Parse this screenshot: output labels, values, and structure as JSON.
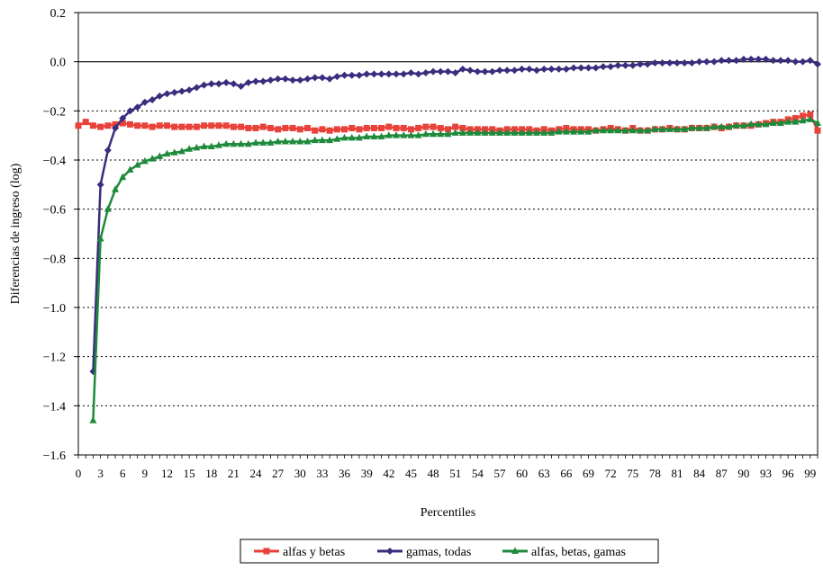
{
  "chart_data": {
    "type": "line",
    "xlabel": "Percentiles",
    "ylabel": "Diferencias de ingreso (log)",
    "ylim": [
      -1.6,
      0.2
    ],
    "xlim": [
      0,
      100
    ],
    "y_ticks": [
      "0.2",
      "0.0",
      "-0.2",
      "-0.4",
      "-0.6",
      "-0.8",
      "-1.0",
      "-1.2",
      "-1.4",
      "-1.6"
    ],
    "x_ticks": [
      "0",
      "3",
      "6",
      "9",
      "12",
      "15",
      "18",
      "21",
      "24",
      "27",
      "30",
      "33",
      "36",
      "39",
      "42",
      "45",
      "48",
      "51",
      "54",
      "57",
      "60",
      "63",
      "66",
      "69",
      "72",
      "75",
      "78",
      "81",
      "84",
      "87",
      "90",
      "93",
      "96",
      "99"
    ],
    "grid": "horizontal dotted",
    "zero_line": true,
    "legend_position": "bottom",
    "series": [
      {
        "name": "alfas y betas",
        "color": "#e8423a",
        "marker": "square",
        "x": [
          0,
          1,
          2,
          3,
          4,
          5,
          6,
          7,
          8,
          9,
          10,
          11,
          12,
          13,
          14,
          15,
          16,
          17,
          18,
          19,
          20,
          21,
          22,
          23,
          24,
          25,
          26,
          27,
          28,
          29,
          30,
          31,
          32,
          33,
          34,
          35,
          36,
          37,
          38,
          39,
          40,
          41,
          42,
          43,
          44,
          45,
          46,
          47,
          48,
          49,
          50,
          51,
          52,
          53,
          54,
          55,
          56,
          57,
          58,
          59,
          60,
          61,
          62,
          63,
          64,
          65,
          66,
          67,
          68,
          69,
          70,
          71,
          72,
          73,
          74,
          75,
          76,
          77,
          78,
          79,
          80,
          81,
          82,
          83,
          84,
          85,
          86,
          87,
          88,
          89,
          90,
          91,
          92,
          93,
          94,
          95,
          96,
          97,
          98,
          99,
          100
        ],
        "y": [
          -0.26,
          -0.245,
          -0.26,
          -0.265,
          -0.26,
          -0.255,
          -0.25,
          -0.255,
          -0.26,
          -0.26,
          -0.265,
          -0.26,
          -0.26,
          -0.265,
          -0.265,
          -0.265,
          -0.265,
          -0.26,
          -0.26,
          -0.26,
          -0.26,
          -0.265,
          -0.265,
          -0.27,
          -0.27,
          -0.265,
          -0.27,
          -0.275,
          -0.27,
          -0.27,
          -0.275,
          -0.27,
          -0.28,
          -0.275,
          -0.28,
          -0.275,
          -0.275,
          -0.27,
          -0.275,
          -0.27,
          -0.27,
          -0.27,
          -0.265,
          -0.27,
          -0.27,
          -0.275,
          -0.27,
          -0.265,
          -0.265,
          -0.27,
          -0.275,
          -0.265,
          -0.27,
          -0.275,
          -0.275,
          -0.275,
          -0.275,
          -0.28,
          -0.275,
          -0.275,
          -0.275,
          -0.275,
          -0.28,
          -0.275,
          -0.28,
          -0.275,
          -0.27,
          -0.275,
          -0.275,
          -0.275,
          -0.28,
          -0.275,
          -0.27,
          -0.275,
          -0.28,
          -0.27,
          -0.28,
          -0.28,
          -0.275,
          -0.275,
          -0.27,
          -0.275,
          -0.275,
          -0.27,
          -0.27,
          -0.27,
          -0.265,
          -0.27,
          -0.265,
          -0.26,
          -0.26,
          -0.26,
          -0.255,
          -0.25,
          -0.245,
          -0.245,
          -0.235,
          -0.23,
          -0.22,
          -0.215,
          -0.28
        ]
      },
      {
        "name": "gamas, todas",
        "color": "#3b2d7e",
        "marker": "diamond",
        "x": [
          2,
          3,
          4,
          5,
          6,
          7,
          8,
          9,
          10,
          11,
          12,
          13,
          14,
          15,
          16,
          17,
          18,
          19,
          20,
          21,
          22,
          23,
          24,
          25,
          26,
          27,
          28,
          29,
          30,
          31,
          32,
          33,
          34,
          35,
          36,
          37,
          38,
          39,
          40,
          41,
          42,
          43,
          44,
          45,
          46,
          47,
          48,
          49,
          50,
          51,
          52,
          53,
          54,
          55,
          56,
          57,
          58,
          59,
          60,
          61,
          62,
          63,
          64,
          65,
          66,
          67,
          68,
          69,
          70,
          71,
          72,
          73,
          74,
          75,
          76,
          77,
          78,
          79,
          80,
          81,
          82,
          83,
          84,
          85,
          86,
          87,
          88,
          89,
          90,
          91,
          92,
          93,
          94,
          95,
          96,
          97,
          98,
          99,
          100
        ],
        "y": [
          -1.26,
          -0.5,
          -0.36,
          -0.27,
          -0.23,
          -0.2,
          -0.185,
          -0.165,
          -0.155,
          -0.14,
          -0.13,
          -0.125,
          -0.12,
          -0.115,
          -0.105,
          -0.095,
          -0.09,
          -0.09,
          -0.085,
          -0.09,
          -0.1,
          -0.085,
          -0.08,
          -0.08,
          -0.075,
          -0.07,
          -0.07,
          -0.075,
          -0.075,
          -0.07,
          -0.065,
          -0.065,
          -0.07,
          -0.06,
          -0.055,
          -0.055,
          -0.055,
          -0.05,
          -0.05,
          -0.05,
          -0.05,
          -0.05,
          -0.05,
          -0.045,
          -0.05,
          -0.045,
          -0.04,
          -0.04,
          -0.04,
          -0.045,
          -0.03,
          -0.035,
          -0.04,
          -0.04,
          -0.04,
          -0.035,
          -0.035,
          -0.035,
          -0.03,
          -0.03,
          -0.035,
          -0.03,
          -0.03,
          -0.03,
          -0.03,
          -0.025,
          -0.025,
          -0.025,
          -0.025,
          -0.02,
          -0.02,
          -0.015,
          -0.015,
          -0.015,
          -0.01,
          -0.01,
          -0.005,
          -0.005,
          -0.005,
          -0.005,
          -0.005,
          -0.005,
          0.0,
          0.0,
          0.0,
          0.005,
          0.005,
          0.005,
          0.01,
          0.01,
          0.01,
          0.01,
          0.005,
          0.005,
          0.005,
          0.0,
          0.0,
          0.005,
          -0.01
        ]
      },
      {
        "name": "alfas, betas, gamas",
        "color": "#1f8a3c",
        "marker": "triangle",
        "x": [
          2,
          3,
          4,
          5,
          6,
          7,
          8,
          9,
          10,
          11,
          12,
          13,
          14,
          15,
          16,
          17,
          18,
          19,
          20,
          21,
          22,
          23,
          24,
          25,
          26,
          27,
          28,
          29,
          30,
          31,
          32,
          33,
          34,
          35,
          36,
          37,
          38,
          39,
          40,
          41,
          42,
          43,
          44,
          45,
          46,
          47,
          48,
          49,
          50,
          51,
          52,
          53,
          54,
          55,
          56,
          57,
          58,
          59,
          60,
          61,
          62,
          63,
          64,
          65,
          66,
          67,
          68,
          69,
          70,
          71,
          72,
          73,
          74,
          75,
          76,
          77,
          78,
          79,
          80,
          81,
          82,
          83,
          84,
          85,
          86,
          87,
          88,
          89,
          90,
          91,
          92,
          93,
          94,
          95,
          96,
          97,
          98,
          99,
          100
        ],
        "y": [
          -1.46,
          -0.72,
          -0.6,
          -0.52,
          -0.47,
          -0.44,
          -0.42,
          -0.405,
          -0.395,
          -0.385,
          -0.375,
          -0.37,
          -0.365,
          -0.355,
          -0.35,
          -0.345,
          -0.345,
          -0.34,
          -0.335,
          -0.335,
          -0.335,
          -0.335,
          -0.33,
          -0.33,
          -0.33,
          -0.325,
          -0.325,
          -0.325,
          -0.325,
          -0.325,
          -0.32,
          -0.32,
          -0.32,
          -0.315,
          -0.31,
          -0.31,
          -0.31,
          -0.305,
          -0.305,
          -0.305,
          -0.3,
          -0.3,
          -0.3,
          -0.3,
          -0.3,
          -0.295,
          -0.295,
          -0.295,
          -0.295,
          -0.29,
          -0.29,
          -0.29,
          -0.29,
          -0.29,
          -0.29,
          -0.29,
          -0.29,
          -0.29,
          -0.29,
          -0.29,
          -0.29,
          -0.29,
          -0.29,
          -0.285,
          -0.285,
          -0.285,
          -0.285,
          -0.285,
          -0.28,
          -0.28,
          -0.28,
          -0.28,
          -0.28,
          -0.28,
          -0.28,
          -0.28,
          -0.275,
          -0.275,
          -0.275,
          -0.275,
          -0.275,
          -0.27,
          -0.27,
          -0.27,
          -0.265,
          -0.265,
          -0.265,
          -0.26,
          -0.26,
          -0.255,
          -0.255,
          -0.255,
          -0.25,
          -0.25,
          -0.245,
          -0.245,
          -0.24,
          -0.235,
          -0.25
        ]
      }
    ]
  }
}
